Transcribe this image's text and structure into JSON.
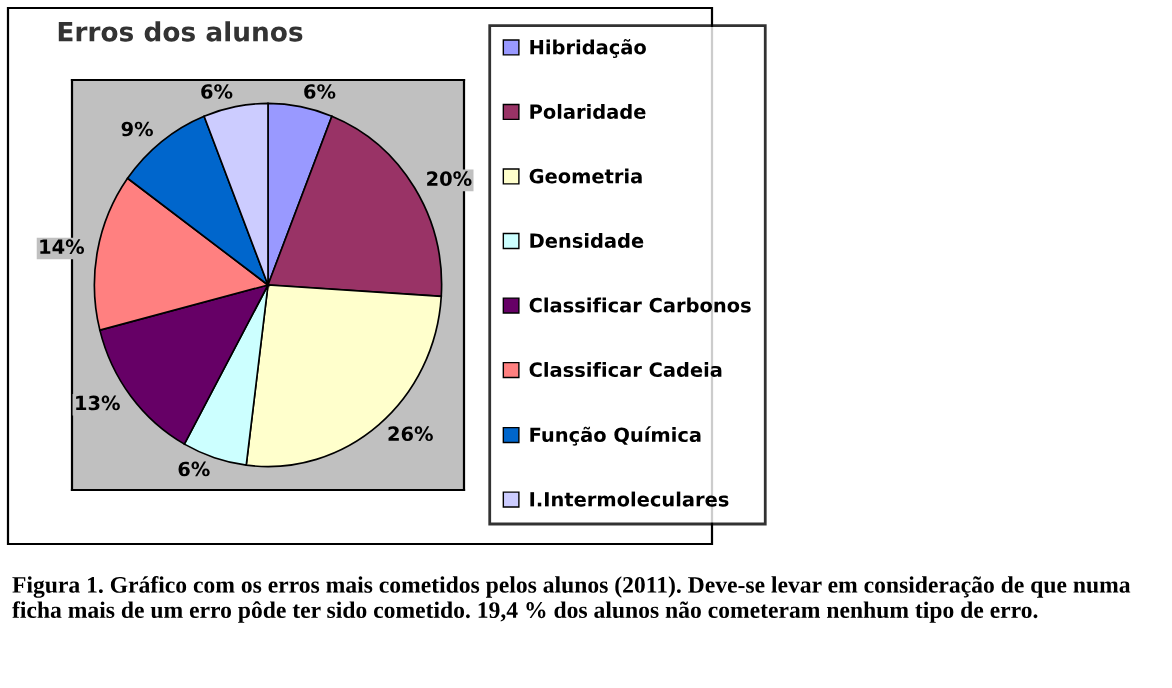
{
  "chart_data": {
    "type": "pie",
    "title": "Erros dos alunos",
    "categories": [
      "Hibridação",
      "Polaridade",
      "Geometria",
      "Densidade",
      "Classificar Carbonos",
      "Classificar Cadeia",
      "Função Química",
      "I.Intermoleculares"
    ],
    "values": [
      6,
      20,
      26,
      6,
      13,
      14,
      9,
      6
    ],
    "value_labels": [
      "6%",
      "20%",
      "26%",
      "6%",
      "13%",
      "14%",
      "9%",
      "6%"
    ],
    "colors": [
      "#9999ff",
      "#993366",
      "#ffffcc",
      "#ccffff",
      "#660066",
      "#ff8080",
      "#0066cc",
      "#ccccff"
    ],
    "legend": "right",
    "annotations": [
      "Figura 1. Gráfico com os erros mais cometidos pelos alunos (2011). Deve-se levar em consideração de que numa ficha mais de um erro pôde ter sido cometido. 19,4 % dos alunos não cometeram nenhum tipo de erro."
    ]
  }
}
